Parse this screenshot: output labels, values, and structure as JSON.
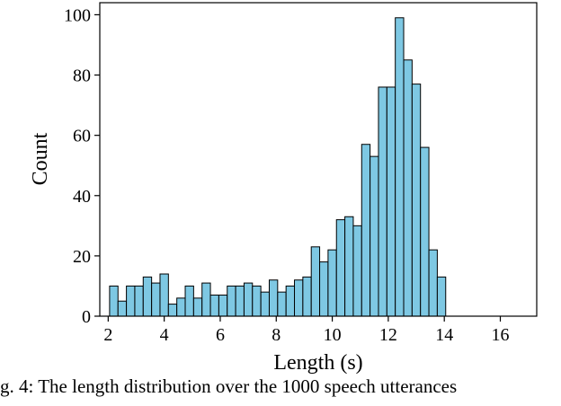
{
  "chart_data": {
    "type": "bar",
    "xlabel": "Length (s)",
    "ylabel": "Count",
    "xlim": [
      1.7,
      17.3
    ],
    "ylim": [
      0,
      104
    ],
    "xticks": [
      2,
      4,
      6,
      8,
      10,
      12,
      14,
      16
    ],
    "yticks": [
      0,
      20,
      40,
      60,
      80,
      100
    ],
    "bin_width": 0.3,
    "bin_start": 2.05,
    "values": [
      10,
      5,
      10,
      10,
      13,
      11,
      14,
      4,
      6,
      10,
      6,
      11,
      7,
      7,
      10,
      10,
      11,
      10,
      8,
      12,
      8,
      10,
      12,
      13,
      23,
      18,
      22,
      32,
      33,
      30,
      57,
      53,
      76,
      76,
      99,
      85,
      77,
      56,
      22,
      13
    ],
    "bar_color": "#7ec8e3",
    "edge_color": "#000000",
    "grid": false
  },
  "caption": "g. 4: The length distribution over the 1000 speech utterances"
}
